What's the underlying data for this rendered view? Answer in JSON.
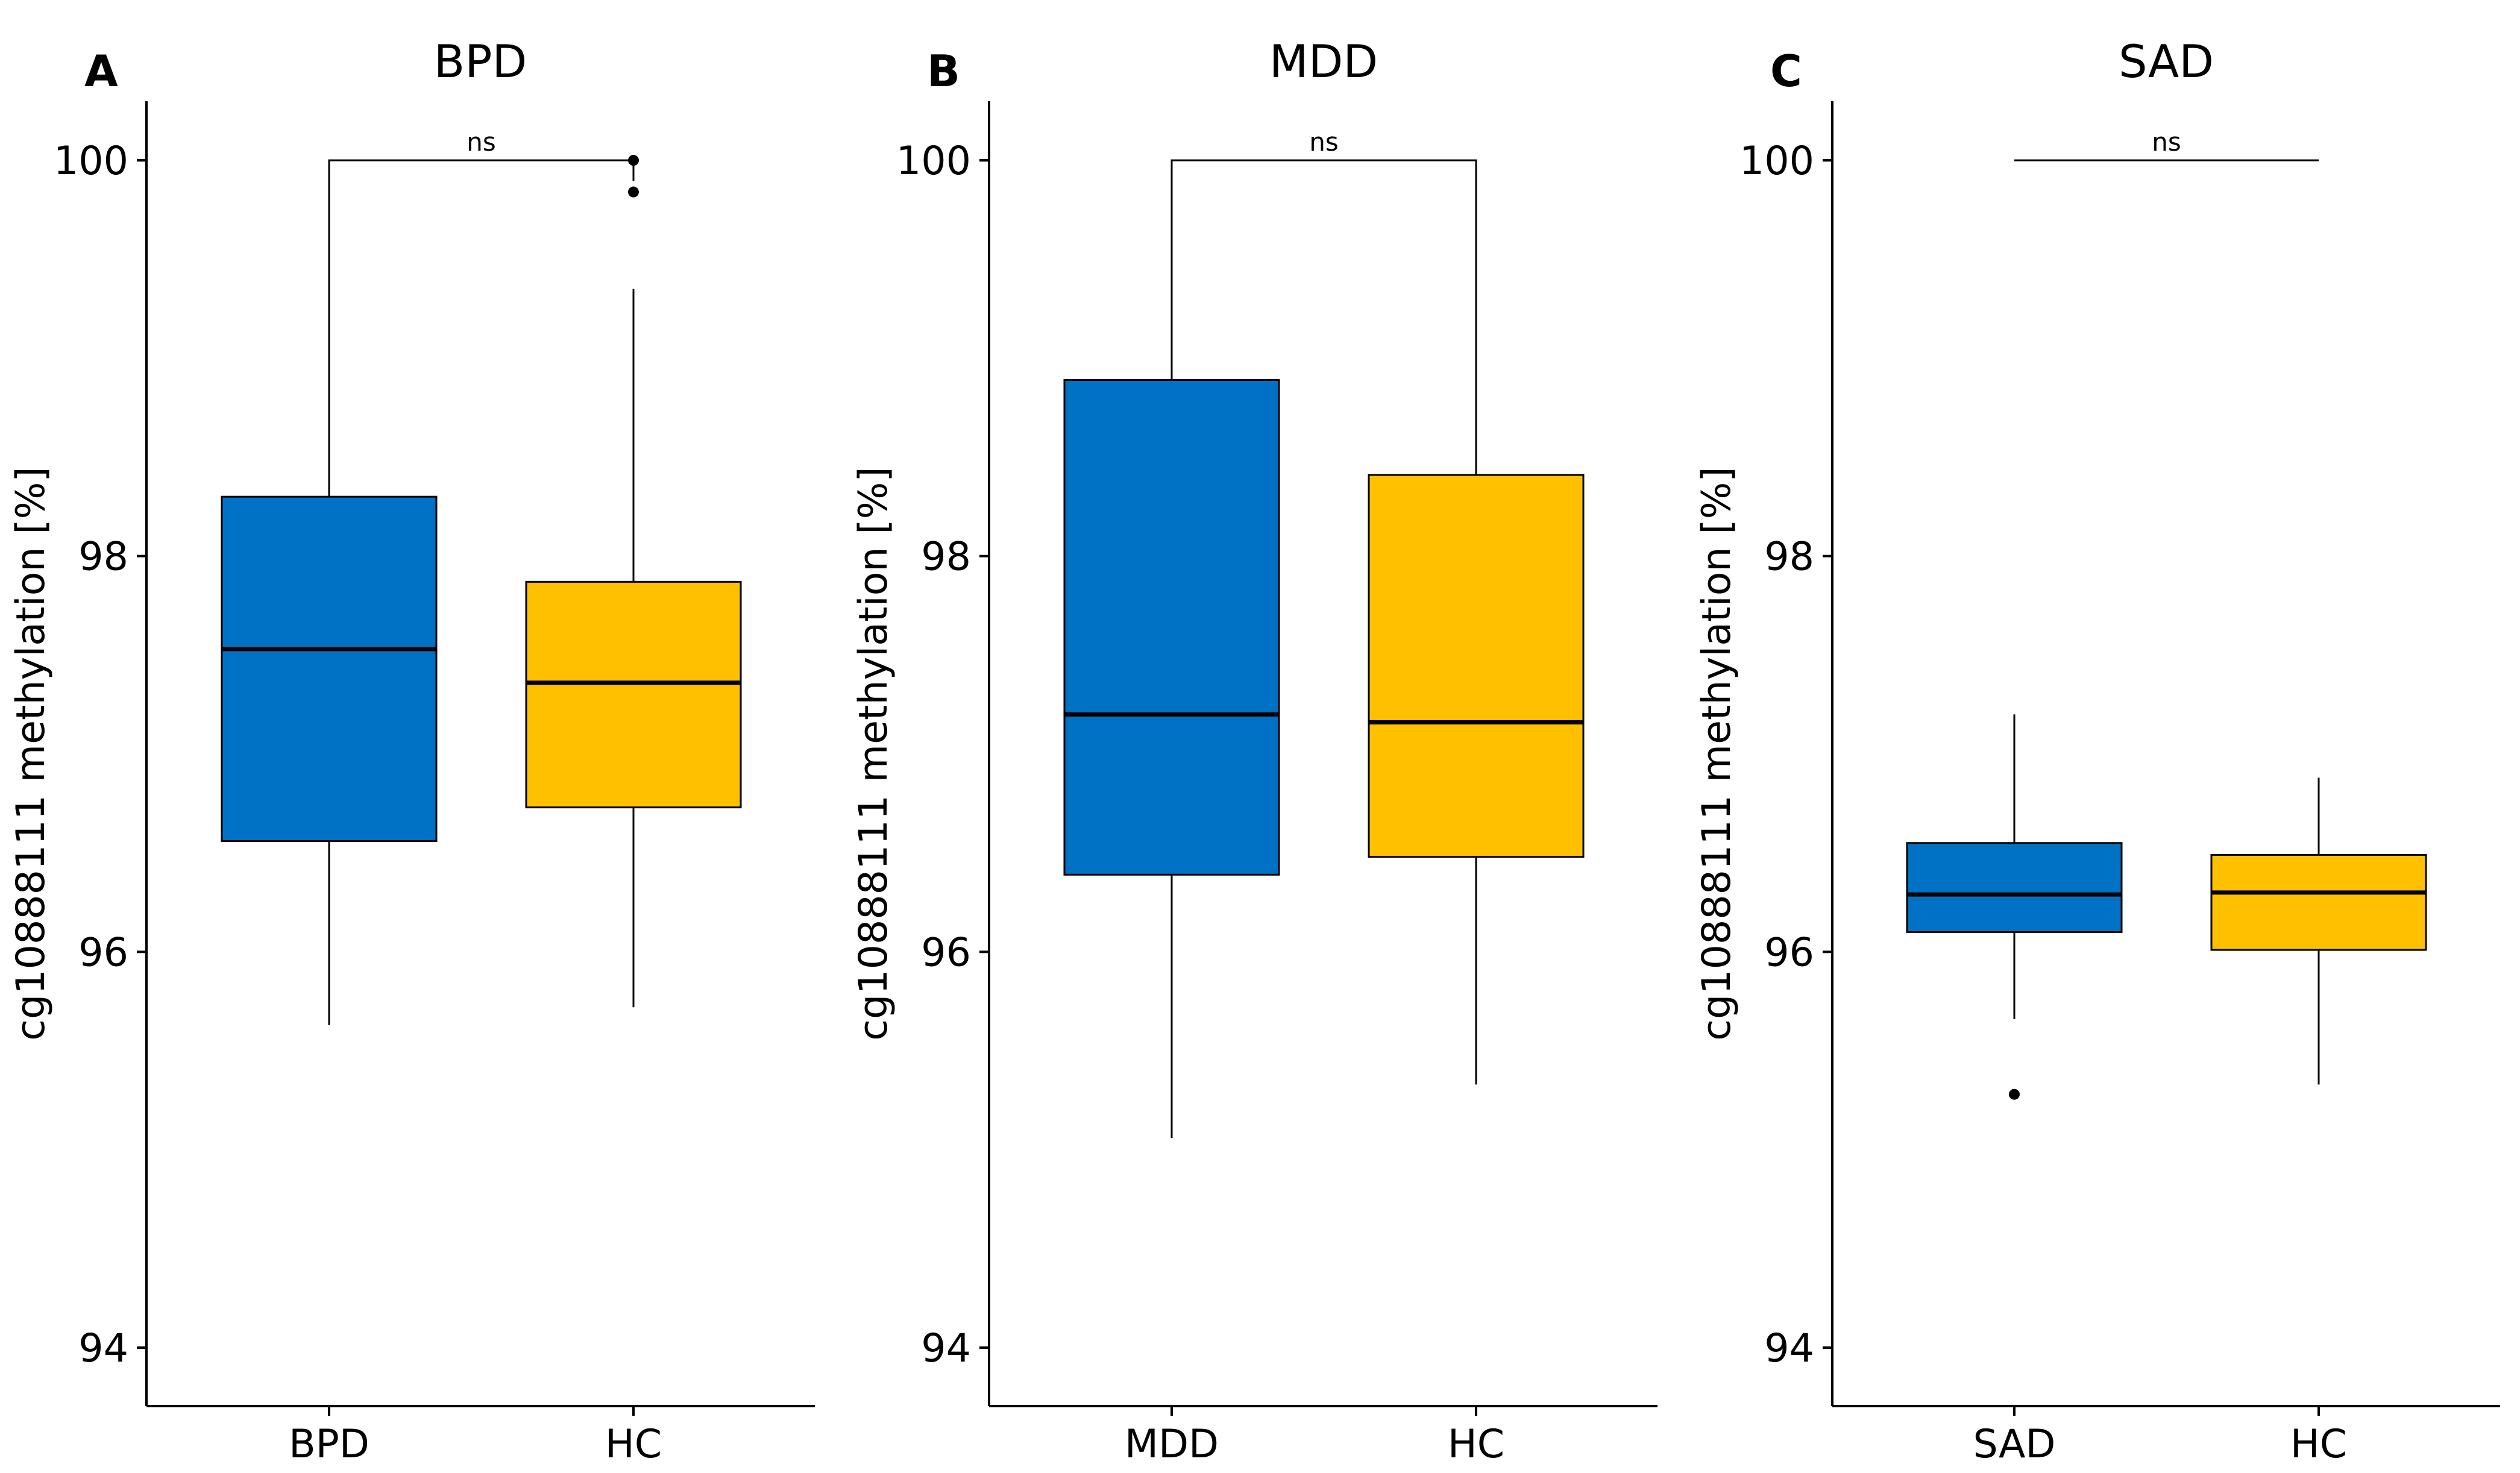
{
  "chart_data": [
    {
      "type": "box",
      "panel_letter": "A",
      "title": "BPD",
      "xlabel": "",
      "ylabel": "cg10888111 methylation [%]",
      "yticks": [
        "94",
        "96",
        "98",
        "100"
      ],
      "ytick_values": [
        94,
        96,
        98,
        100
      ],
      "ylim": [
        93.7,
        100.3
      ],
      "categories": [
        "BPD",
        "HC"
      ],
      "colors": [
        "#0072C6",
        "#FFC000"
      ],
      "boxes": [
        {
          "name": "BPD",
          "whisker_low": 95.63,
          "q1": 96.56,
          "median": 97.53,
          "q3": 98.3,
          "whisker_high": 100.0,
          "outliers": []
        },
        {
          "name": "HC",
          "whisker_low": 95.72,
          "q1": 96.73,
          "median": 97.36,
          "q3": 97.87,
          "whisker_high": 99.35,
          "outliers": [
            100.0,
            99.84
          ]
        }
      ],
      "significance": {
        "label": "ns",
        "y": 100.0,
        "bracket": true
      }
    },
    {
      "type": "box",
      "panel_letter": "B",
      "title": "MDD",
      "xlabel": "",
      "ylabel": "cg10888111 methylation [%]",
      "yticks": [
        "94",
        "96",
        "98",
        "100"
      ],
      "ytick_values": [
        94,
        96,
        98,
        100
      ],
      "ylim": [
        93.7,
        100.3
      ],
      "categories": [
        "MDD",
        "HC"
      ],
      "colors": [
        "#0072C6",
        "#FFC000"
      ],
      "boxes": [
        {
          "name": "MDD",
          "whisker_low": 95.06,
          "q1": 96.39,
          "median": 97.2,
          "q3": 98.89,
          "whisker_high": 100.0,
          "outliers": []
        },
        {
          "name": "HC",
          "whisker_low": 95.33,
          "q1": 96.48,
          "median": 97.16,
          "q3": 98.41,
          "whisker_high": 100.0,
          "outliers": []
        }
      ],
      "significance": {
        "label": "ns",
        "y": 100.0,
        "bracket": true
      }
    },
    {
      "type": "box",
      "panel_letter": "C",
      "title": "SAD",
      "xlabel": "",
      "ylabel": "cg10888111 methylation [%]",
      "yticks": [
        "94",
        "96",
        "98",
        "100"
      ],
      "ytick_values": [
        94,
        96,
        98,
        100
      ],
      "ylim": [
        93.7,
        100.3
      ],
      "categories": [
        "SAD",
        "HC"
      ],
      "colors": [
        "#0072C6",
        "#FFC000"
      ],
      "boxes": [
        {
          "name": "SAD",
          "whisker_low": 95.66,
          "q1": 96.1,
          "median": 96.29,
          "q3": 96.55,
          "whisker_high": 97.2,
          "outliers": [
            95.28
          ]
        },
        {
          "name": "HC",
          "whisker_low": 95.33,
          "q1": 96.01,
          "median": 96.3,
          "q3": 96.49,
          "whisker_high": 96.88,
          "outliers": []
        }
      ],
      "significance": {
        "label": "ns",
        "y": 100.0,
        "bracket": false
      }
    }
  ]
}
